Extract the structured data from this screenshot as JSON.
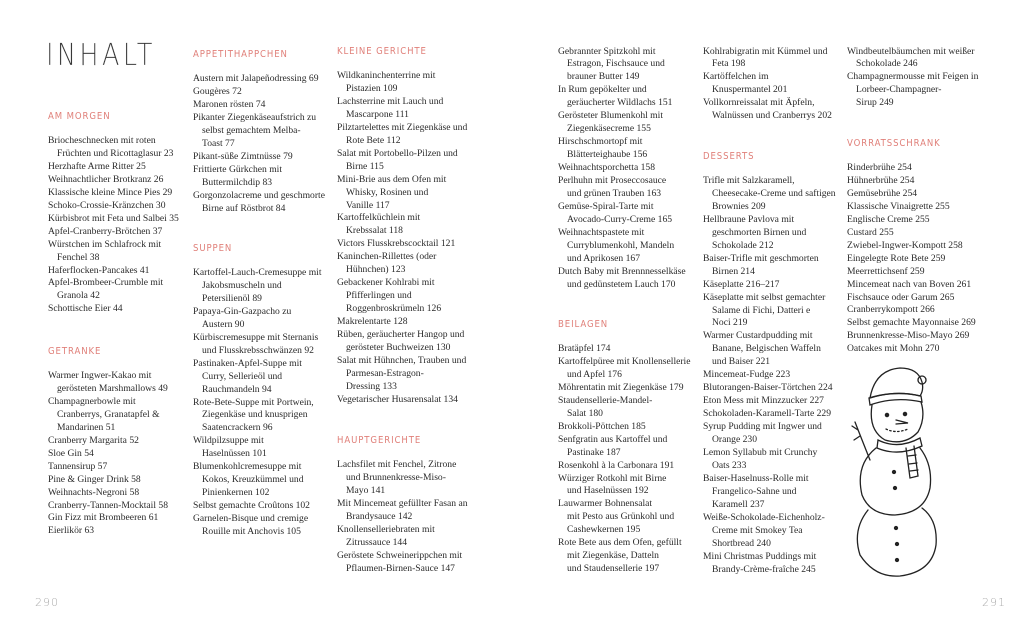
{
  "title": "INHALT",
  "page_left": "290",
  "page_right": "291",
  "accent_color": "#e0807a",
  "columns": [
    {
      "sections": [
        {
          "heading": "Am Morgen",
          "entries": [
            "Briocheschnecken mit roten\nFrüchten und Ricottaglasur  23",
            "Herzhafte Arme Ritter  25",
            "Weihnachtlicher Brotkranz  26",
            "Klassische kleine Mince Pies  29",
            "Schoko-Crossie-Kränzchen  30",
            "Kürbisbrot mit Feta und Salbei  35",
            "Apfel-Cranberry-Brötchen  37",
            "Würstchen im Schlafrock mit\nFenchel  38",
            "Haferflocken-Pancakes  41",
            "Apfel-Brombeer-Crumble mit\nGranola  42",
            "Schottische Eier  44"
          ]
        },
        {
          "heading": "Getränke",
          "entries": [
            "Warmer Ingwer-Kakao mit\ngerösteten Marshmallows  49",
            "Champagnerbowle mit\nCranberrys, Granatapfel &\nMandarinen  51",
            "Cranberry Margarita  52",
            "Sloe Gin  54",
            "Tannensirup  57",
            "Pine & Ginger Drink  58",
            "Weihnachts-Negroni  58",
            "Cranberry-Tannen-Mocktail  58",
            "Gin Fizz mit Brombeeren  61",
            "Eierlikör  63"
          ]
        }
      ]
    },
    {
      "sections": [
        {
          "heading": "Appetithäppchen",
          "entries": [
            "Austern mit Jalapeñodressing  69",
            "Gougères  72",
            "Maronen rösten  74",
            "Pikanter Ziegenkäseaufstrich zu\nselbst gemachtem Melba-\nToast  77",
            "Pikant-süße Zimtnüsse  79",
            "Frittierte Gürkchen mit\nButtermilchdip  83",
            "Gorgonzolacreme und geschmorte\nBirne auf Röstbrot  84"
          ]
        },
        {
          "heading": "Suppen",
          "entries": [
            "Kartoffel-Lauch-Cremesuppe mit\nJakobsmuscheln und\nPetersilienöl  89",
            "Papaya-Gin-Gazpacho zu\nAustern  90",
            "Kürbiscremesuppe mit Sternanis\nund Flusskrebsschwänzen  92",
            "Pastinaken-Apfel-Suppe mit\nCurry, Sellerieöl und\nRauchmandeln  94",
            "Rote-Bete-Suppe mit Portwein,\nZiegenkäse und knusprigen\nSaatencrackern  96",
            "Wildpilzsuppe mit\nHaselnüssen  101",
            "Blumenkohlcremesuppe mit\nKokos, Kreuzkümmel und\nPinienkernen  102",
            "Selbst gemachte Croûtons  102",
            "Garnelen-Bisque und cremige\nRouille mit Anchovis  105"
          ]
        }
      ]
    },
    {
      "sections": [
        {
          "heading": "Kleine Gerichte",
          "entries": [
            "Wildkaninchenterrine mit\nPistazien  109",
            "Lachsterrine mit Lauch und\nMascarpone  111",
            "Pilztartelettes mit Ziegenkäse und\nRote Bete  112",
            "Salat mit Portobello-Pilzen und\nBirne  115",
            "Mini-Brie aus dem Ofen mit\nWhisky, Rosinen und\nVanille  117",
            "Kartoffelküchlein mit\nKrebssalat  118",
            "Victors Flusskrebscocktail  121",
            "Kaninchen-Rillettes (oder\nHühnchen)  123",
            "Gebackener Kohlrabi mit\nPfifferlingen und\nRoggenbroskrümeln  126",
            "Makrelentarte  128",
            "Rüben, geräucherter Hangop und\ngerösteter Buchweizen  130",
            "Salat mit Hühnchen, Trauben und\nParmesan-Estragon-\nDressing  133",
            "Vegetarischer Husarensalat  134"
          ]
        },
        {
          "heading": "Hauptgerichte",
          "entries": [
            "Lachsfilet mit Fenchel, Zitrone\nund Brunnenkresse-Miso-\nMayo  141",
            "Mit Mincemeat gefüllter Fasan an\nBrandysauce  142",
            "Knollenselleriebraten mit\nZitrussauce  144",
            "Geröstete Schweinerippchen mit\nPflaumen-Birnen-Sauce  147"
          ]
        }
      ]
    },
    {
      "sections": [
        {
          "heading": "",
          "entries": [
            "Gebrannter Spitzkohl mit\nEstragon, Fischsauce und\nbrauner Butter  149",
            "In Rum gepökelter und\ngeräucherter Wildlachs  151",
            "Gerösteter Blumenkohl mit\nZiegenkäsecreme  155",
            "Hirschschmortopf mit\nBlätterteighaube  156",
            "Weihnachtsporchetta  158",
            "Perlhuhn mit Proseccosauce\nund grünen Trauben  163",
            "Gemüse-Spiral-Tarte mit\nAvocado-Curry-Creme  165",
            "Weihnachtspastete mit\nCurryblumenkohl, Mandeln\nund Aprikosen  167",
            "Dutch Baby mit Brennnesselkäse\nund gedünstetem Lauch  170"
          ]
        },
        {
          "heading": "Beilagen",
          "entries": [
            "Bratäpfel  174",
            "Kartoffelpüree mit Knollensellerie\nund Apfel  176",
            "Möhrentatin mit Ziegenkäse  179",
            "Staudensellerie-Mandel-\nSalat  180",
            "Brokkoli-Pöttchen  185",
            "Senfgratin aus Kartoffel und\nPastinake  187",
            "Rosenkohl à la Carbonara  191",
            "Würziger Rotkohl mit Birne\nund Haselnüssen  192",
            "Lauwarmer Bohnensalat\nmit Pesto aus Grünkohl und\nCashewkernen  195",
            "Rote Bete aus dem Ofen, gefüllt\nmit Ziegenkäse, Datteln\nund Staudensellerie  197"
          ]
        }
      ]
    },
    {
      "sections": [
        {
          "heading": "",
          "entries": [
            "Kohlrabigratin mit Kümmel und\nFeta  198",
            "Kartöffelchen im\nKnuspermantel  201",
            "Vollkornreissalat mit Äpfeln,\nWalnüssen und Cranberrys  202"
          ]
        },
        {
          "heading": "Desserts",
          "entries": [
            "Trifle mit Salzkaramell,\nCheesecake-Creme und saftigen\nBrownies  209",
            "Hellbraune Pavlova mit\ngeschmorten Birnen und\nSchokolade  212",
            "Baiser-Trifle mit geschmorten\nBirnen  214",
            "Käseplatte  216–217",
            "Käseplatte mit selbst gemachter\nSalame di Fichi, Datteri e\nNoci  219",
            "Warmer Custardpudding mit\nBanane, Belgischen Waffeln\nund Baiser  221",
            "Mincemeat-Fudge  223",
            "Blutorangen-Baiser-Törtchen  224",
            "Eton Mess mit Minzzucker  227",
            "Schokoladen-Karamell-Tarte  229",
            "Syrup Pudding mit Ingwer und\nOrange  230",
            "Lemon Syllabub mit Crunchy\nOats  233",
            "Baiser-Haselnuss-Rolle mit\nFrangelico-Sahne und\nKaramell  237",
            "Weiße-Schokolade-Eichenholz-\nCreme mit Smokey Tea\nShortbread  240",
            "Mini Christmas Puddings mit\nBrandy-Crème-fraîche  245"
          ]
        }
      ]
    },
    {
      "sections": [
        {
          "heading": "",
          "entries": [
            "Windbeutelbäumchen mit weißer\nSchokolade  246",
            "Champagnermousse mit Feigen in\nLorbeer-Champagner-\nSirup  249"
          ]
        },
        {
          "heading": "Vorratsschrank",
          "entries": [
            "Rinderbrühe  254",
            "Hühnerbrühe  254",
            "Gemüsebrühe  254",
            "Klassische Vinaigrette  255",
            "Englische Creme  255",
            "Custard  255",
            "Zwiebel-Ingwer-Kompott  258",
            "Eingelegte Rote Bete  259",
            "Meerrettichsenf  259",
            "Mincemeat nach van Boven  261",
            "Fischsauce oder Garum  265",
            "Cranberrykompott  266",
            "Selbst gemachte Mayonnaise  269",
            "Brunnenkresse-Miso-Mayo  269",
            "Oatcakes mit Mohn  270"
          ]
        }
      ]
    }
  ]
}
